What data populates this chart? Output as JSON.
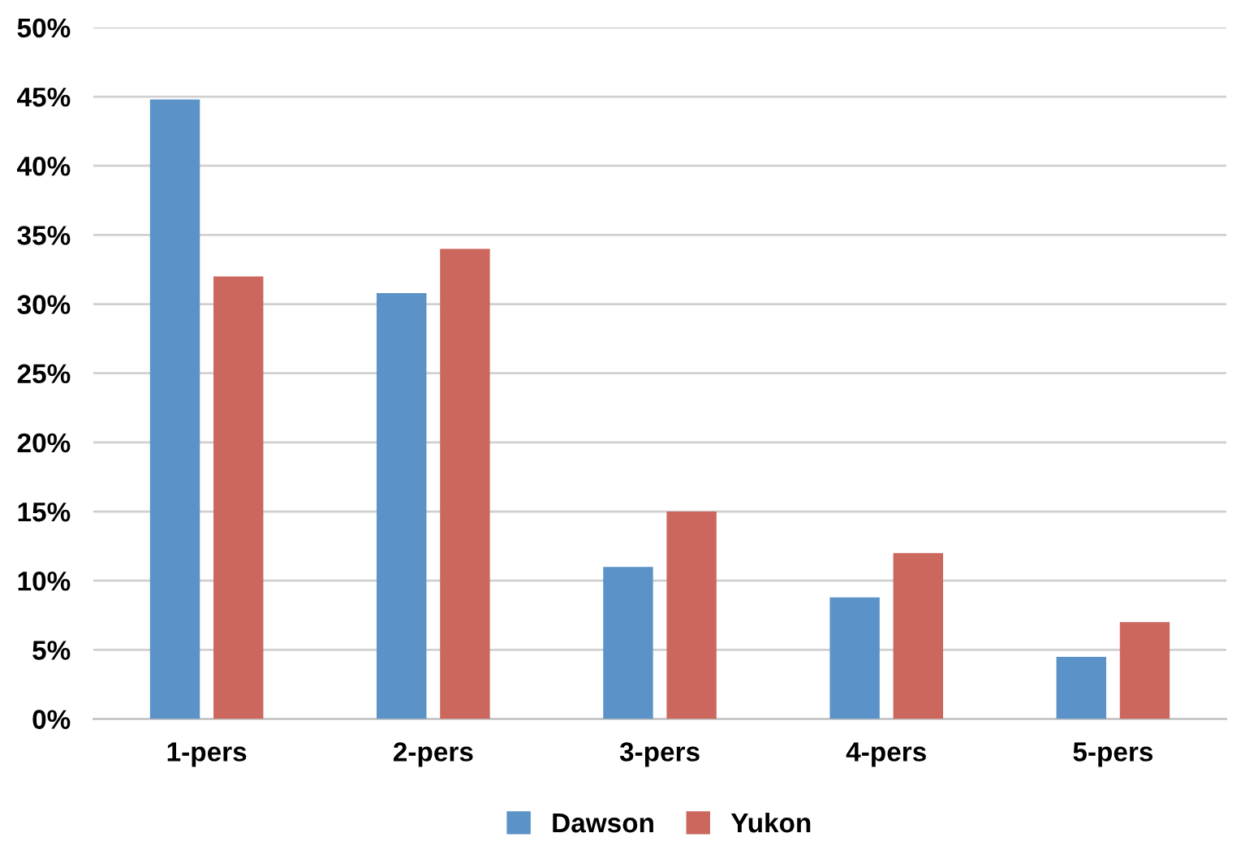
{
  "chart_data": {
    "type": "bar",
    "categories": [
      "1-pers",
      "2-pers",
      "3-pers",
      "4-pers",
      "5-pers"
    ],
    "series": [
      {
        "name": "Dawson",
        "color": "#5b93c8",
        "values": [
          44.8,
          30.8,
          11.0,
          8.8,
          4.5
        ]
      },
      {
        "name": "Yukon",
        "color": "#cc675e",
        "values": [
          32.0,
          34.0,
          15.0,
          12.0,
          7.0
        ]
      }
    ],
    "ylim": [
      0,
      50
    ],
    "yticks": [
      {
        "value": 0,
        "label": "0%"
      },
      {
        "value": 5,
        "label": "5%"
      },
      {
        "value": 10,
        "label": "10%"
      },
      {
        "value": 15,
        "label": "15%"
      },
      {
        "value": 20,
        "label": "20%"
      },
      {
        "value": 25,
        "label": "25%"
      },
      {
        "value": 30,
        "label": "30%"
      },
      {
        "value": 35,
        "label": "35%"
      },
      {
        "value": 40,
        "label": "40%"
      },
      {
        "value": 45,
        "label": "45%"
      },
      {
        "value": 50,
        "label": "50%"
      }
    ],
    "grid": "y",
    "legend": "bottom"
  }
}
